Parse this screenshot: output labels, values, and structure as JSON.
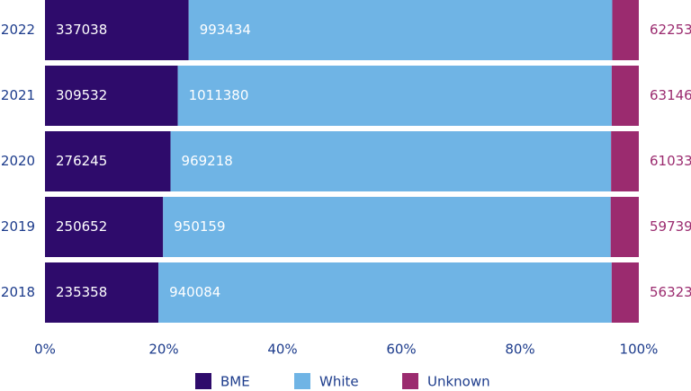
{
  "chart_data": {
    "type": "bar",
    "orientation": "horizontal",
    "stacked": "percent",
    "categories": [
      "2022",
      "2021",
      "2020",
      "2019",
      "2018"
    ],
    "series": [
      {
        "name": "BME",
        "color": "#2e0b6b",
        "label_color": "#ffffff",
        "values": [
          337038,
          309532,
          276245,
          250652,
          235358
        ]
      },
      {
        "name": "White",
        "color": "#6fb4e5",
        "label_color": "#ffffff",
        "values": [
          993434,
          1011380,
          969218,
          950159,
          940084
        ]
      },
      {
        "name": "Unknown",
        "color": "#9b2b6f",
        "label_color": "#9b2b6f",
        "values": [
          62253,
          63146,
          61033,
          59739,
          56323
        ]
      }
    ],
    "xlim": [
      0,
      100
    ],
    "xticks": [
      {
        "value": 0,
        "label": "0%"
      },
      {
        "value": 20,
        "label": "20%"
      },
      {
        "value": 40,
        "label": "40%"
      },
      {
        "value": 60,
        "label": "60%"
      },
      {
        "value": 80,
        "label": "80%"
      },
      {
        "value": 100,
        "label": "100%"
      }
    ],
    "legend": "bottom"
  }
}
